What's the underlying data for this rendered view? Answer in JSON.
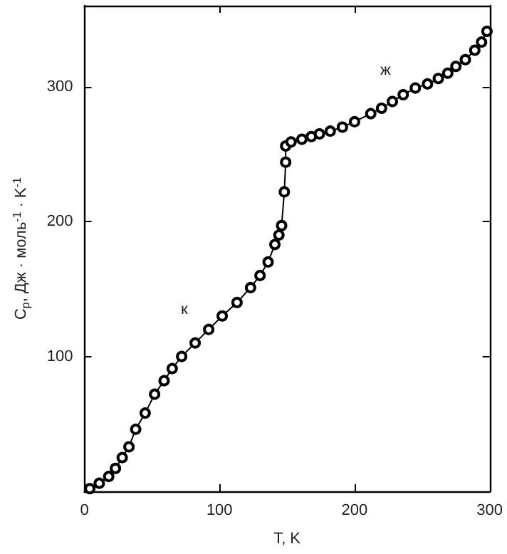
{
  "chart_data": {
    "type": "line",
    "xlabel": "T, K",
    "ylabel": "C$_{p}$, Дж · моль$^{-1}$ · K$^{-1}$",
    "annotations": [
      "к",
      "ж"
    ],
    "series": [
      {
        "color": "#000000",
        "x": [
          4,
          11,
          18,
          23,
          28,
          33,
          38,
          45,
          52,
          59,
          65,
          72,
          82,
          92,
          102,
          113,
          123,
          130,
          136,
          141,
          144,
          146,
          148,
          149,
          149,
          153,
          161,
          168,
          174,
          182,
          191,
          200,
          212,
          220,
          228,
          236,
          245,
          254,
          262,
          269,
          275,
          282,
          289,
          294,
          298
        ],
        "values": [
          2,
          6,
          11,
          17,
          25,
          33,
          46,
          58,
          72,
          82,
          91,
          100,
          110,
          120,
          130,
          140,
          151,
          160,
          170,
          183,
          190,
          197,
          222,
          244,
          256,
          259,
          261,
          263,
          265,
          267,
          270,
          274,
          280,
          284,
          289,
          294,
          299,
          302,
          306,
          310,
          315,
          320,
          327,
          333,
          341
        ]
      }
    ],
    "xlim": [
      0,
      300
    ],
    "xticks": [
      0,
      100,
      200,
      300
    ],
    "ylim": [
      0,
      360
    ],
    "yticks": [
      100,
      200,
      300
    ],
    "marker": "circle",
    "line_style": "solid",
    "grid": false
  }
}
